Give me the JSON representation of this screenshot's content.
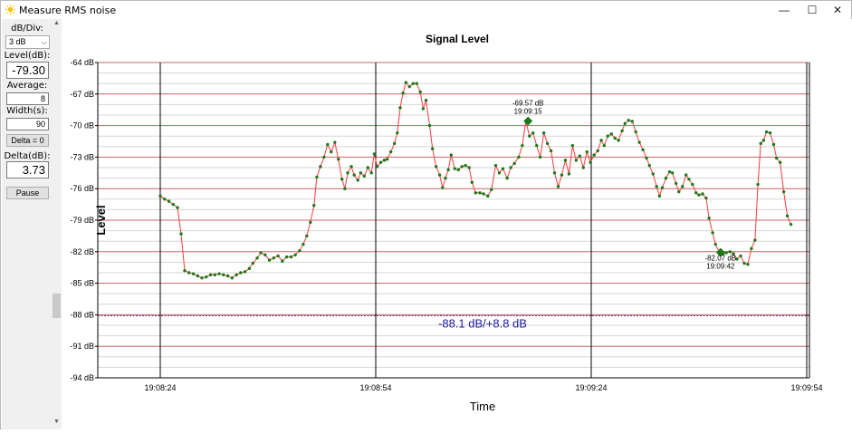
{
  "window": {
    "title": "Measure RMS noise",
    "minimize_glyph": "—",
    "maximize_glyph": "☐",
    "close_glyph": "✕"
  },
  "sidebar": {
    "db_div_label": "dB/Div:",
    "db_div_value": "3 dB",
    "level_label": "Level(dB):",
    "level_value": "-79.30",
    "average_label": "Average:",
    "average_value": "8",
    "width_label": "Width(s):",
    "width_value": "90",
    "delta_zero_label": "Delta = 0",
    "delta_label": "Delta(dB):",
    "delta_value": "3.73",
    "pause_label": "Pause"
  },
  "colors": {
    "line": "#ff3b3b",
    "point": "#1a7a1a",
    "grid_major": "#c86464",
    "grid_minor": "#d6d6d6",
    "reference": "#6a2a8a",
    "reference_text": "#1a1aa0"
  },
  "chart_data": {
    "type": "line",
    "title": "Signal Level",
    "xlabel": "Time",
    "ylabel": "Level",
    "ylim": [
      -94,
      -64
    ],
    "y_ticks": [
      "-64 dB",
      "-67 dB",
      "-70 dB",
      "-73 dB",
      "-76 dB",
      "-79 dB",
      "-82 dB",
      "-85 dB",
      "-88 dB",
      "-91 dB",
      "-94 dB"
    ],
    "x_range_seconds": [
      0,
      90
    ],
    "x_ticks": [
      {
        "t": 0,
        "label": "19:08:24"
      },
      {
        "t": 30,
        "label": "19:08:54"
      },
      {
        "t": 60,
        "label": "19:09:24"
      },
      {
        "t": 90,
        "label": "19:09:54"
      }
    ],
    "reference": {
      "value": -88.1,
      "label": "-88.1 dB/+8.8 dB"
    },
    "markers": [
      {
        "t": 51.2,
        "value": -69.57,
        "label": "-69.57 dB",
        "time": "19:09:15"
      },
      {
        "t": 78.0,
        "value": -82.07,
        "label": "-82.07 dB",
        "time": "19:09:42"
      }
    ],
    "series": [
      {
        "values": [
          [
            0,
            -76.7
          ],
          [
            0.6,
            -77.0
          ],
          [
            1.2,
            -77.2
          ],
          [
            1.8,
            -77.5
          ],
          [
            2.4,
            -77.8
          ],
          [
            2.9,
            -80.3
          ],
          [
            3.4,
            -83.8
          ],
          [
            4.0,
            -84.0
          ],
          [
            4.6,
            -84.1
          ],
          [
            5.2,
            -84.3
          ],
          [
            5.8,
            -84.5
          ],
          [
            6.4,
            -84.4
          ],
          [
            7.0,
            -84.2
          ],
          [
            7.6,
            -84.2
          ],
          [
            8.2,
            -84.1
          ],
          [
            8.8,
            -84.2
          ],
          [
            9.4,
            -84.3
          ],
          [
            10.0,
            -84.5
          ],
          [
            10.6,
            -84.2
          ],
          [
            11.2,
            -84.0
          ],
          [
            11.8,
            -83.9
          ],
          [
            12.4,
            -83.6
          ],
          [
            12.9,
            -83.1
          ],
          [
            13.5,
            -82.6
          ],
          [
            14.0,
            -82.1
          ],
          [
            14.6,
            -82.3
          ],
          [
            15.2,
            -82.8
          ],
          [
            15.8,
            -82.6
          ],
          [
            16.4,
            -82.4
          ],
          [
            17.0,
            -82.9
          ],
          [
            17.6,
            -82.5
          ],
          [
            18.2,
            -82.5
          ],
          [
            18.8,
            -82.3
          ],
          [
            19.4,
            -81.9
          ],
          [
            19.9,
            -81.3
          ],
          [
            20.4,
            -80.5
          ],
          [
            20.9,
            -79.2
          ],
          [
            21.4,
            -77.6
          ],
          [
            21.8,
            -74.9
          ],
          [
            22.3,
            -73.9
          ],
          [
            22.8,
            -73.0
          ],
          [
            23.3,
            -71.8
          ],
          [
            23.8,
            -72.5
          ],
          [
            24.3,
            -71.6
          ],
          [
            24.8,
            -73.2
          ],
          [
            25.3,
            -75.1
          ],
          [
            25.7,
            -76.0
          ],
          [
            26.1,
            -74.5
          ],
          [
            26.6,
            -73.9
          ],
          [
            27.0,
            -74.7
          ],
          [
            27.5,
            -75.2
          ],
          [
            27.9,
            -74.5
          ],
          [
            28.4,
            -74.8
          ],
          [
            28.9,
            -74.0
          ],
          [
            29.4,
            -74.5
          ],
          [
            29.8,
            -72.7
          ],
          [
            30.2,
            -73.9
          ],
          [
            30.7,
            -73.5
          ],
          [
            31.2,
            -73.3
          ],
          [
            31.6,
            -73.2
          ],
          [
            32.1,
            -72.5
          ],
          [
            32.6,
            -71.7
          ],
          [
            33.0,
            -70.7
          ],
          [
            33.4,
            -68.3
          ],
          [
            33.8,
            -66.9
          ],
          [
            34.2,
            -65.9
          ],
          [
            34.7,
            -66.3
          ],
          [
            35.2,
            -66.0
          ],
          [
            35.7,
            -66.0
          ],
          [
            36.2,
            -66.8
          ],
          [
            36.6,
            -68.4
          ],
          [
            37.0,
            -67.6
          ],
          [
            37.5,
            -70.0
          ],
          [
            37.9,
            -72.2
          ],
          [
            38.4,
            -73.9
          ],
          [
            38.9,
            -74.7
          ],
          [
            39.3,
            -75.9
          ],
          [
            39.7,
            -75.0
          ],
          [
            40.1,
            -74.2
          ],
          [
            40.5,
            -72.8
          ],
          [
            41.0,
            -74.1
          ],
          [
            41.5,
            -74.2
          ],
          [
            42.0,
            -73.9
          ],
          [
            42.5,
            -73.8
          ],
          [
            43.0,
            -74.0
          ],
          [
            43.4,
            -75.4
          ],
          [
            43.9,
            -76.4
          ],
          [
            44.5,
            -76.4
          ],
          [
            45.0,
            -76.5
          ],
          [
            45.6,
            -76.7
          ],
          [
            46.1,
            -76.1
          ],
          [
            46.7,
            -73.8
          ],
          [
            47.2,
            -74.5
          ],
          [
            47.7,
            -74.1
          ],
          [
            48.3,
            -75.0
          ],
          [
            48.8,
            -74.0
          ],
          [
            49.3,
            -73.6
          ],
          [
            49.9,
            -73.0
          ],
          [
            50.4,
            -71.9
          ],
          [
            50.9,
            -69.6
          ],
          [
            51.4,
            -71.0
          ],
          [
            51.9,
            -70.7
          ],
          [
            52.4,
            -71.9
          ],
          [
            52.9,
            -73.0
          ],
          [
            53.4,
            -70.7
          ],
          [
            53.9,
            -71.7
          ],
          [
            54.4,
            -72.4
          ],
          [
            54.9,
            -74.5
          ],
          [
            55.4,
            -75.8
          ],
          [
            55.9,
            -74.7
          ],
          [
            56.4,
            -73.3
          ],
          [
            56.9,
            -74.6
          ],
          [
            57.4,
            -71.9
          ],
          [
            57.9,
            -73.3
          ],
          [
            58.4,
            -72.9
          ],
          [
            58.9,
            -74.0
          ],
          [
            59.4,
            -72.5
          ],
          [
            59.9,
            -73.5
          ],
          [
            60.4,
            -72.8
          ],
          [
            60.9,
            -72.4
          ],
          [
            61.4,
            -71.4
          ],
          [
            61.8,
            -71.9
          ],
          [
            62.3,
            -71.0
          ],
          [
            62.8,
            -70.8
          ],
          [
            63.3,
            -71.2
          ],
          [
            63.8,
            -71.4
          ],
          [
            64.3,
            -70.5
          ],
          [
            64.7,
            -69.8
          ],
          [
            65.2,
            -69.5
          ],
          [
            65.7,
            -69.6
          ],
          [
            66.2,
            -70.6
          ],
          [
            66.7,
            -71.6
          ],
          [
            67.2,
            -72.3
          ],
          [
            67.7,
            -73.1
          ],
          [
            68.1,
            -73.8
          ],
          [
            68.6,
            -74.6
          ],
          [
            69.1,
            -75.8
          ],
          [
            69.5,
            -76.7
          ],
          [
            69.9,
            -75.9
          ],
          [
            70.4,
            -75.0
          ],
          [
            70.9,
            -74.4
          ],
          [
            71.3,
            -74.5
          ],
          [
            71.8,
            -75.5
          ],
          [
            72.2,
            -76.3
          ],
          [
            72.7,
            -75.8
          ],
          [
            73.2,
            -74.7
          ],
          [
            73.6,
            -75.1
          ],
          [
            74.1,
            -75.6
          ],
          [
            74.6,
            -76.4
          ],
          [
            75.0,
            -76.6
          ],
          [
            75.5,
            -76.5
          ],
          [
            76.0,
            -76.9
          ],
          [
            76.4,
            -78.8
          ],
          [
            76.9,
            -80.2
          ],
          [
            77.3,
            -81.3
          ],
          [
            77.8,
            -82.0
          ],
          [
            78.3,
            -82.2
          ],
          [
            78.8,
            -82.1
          ],
          [
            79.3,
            -82.0
          ],
          [
            79.8,
            -82.2
          ],
          [
            80.3,
            -82.7
          ],
          [
            80.8,
            -82.4
          ],
          [
            81.3,
            -83.1
          ],
          [
            81.8,
            -83.2
          ],
          [
            82.3,
            -81.7
          ],
          [
            82.8,
            -80.9
          ],
          [
            83.2,
            -75.6
          ],
          [
            83.6,
            -71.7
          ],
          [
            84.0,
            -71.4
          ],
          [
            84.4,
            -70.6
          ],
          [
            84.9,
            -70.7
          ],
          [
            85.4,
            -71.8
          ],
          [
            85.8,
            -73.1
          ],
          [
            86.3,
            -73.5
          ],
          [
            86.8,
            -76.3
          ],
          [
            87.3,
            -78.6
          ],
          [
            87.8,
            -79.4
          ]
        ]
      }
    ]
  }
}
